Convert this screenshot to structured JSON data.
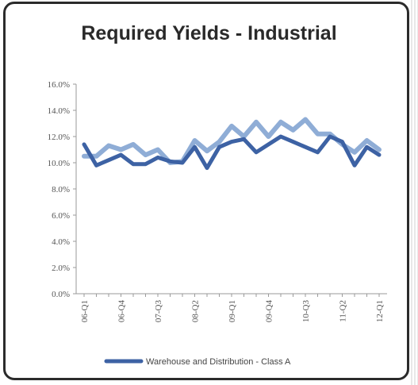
{
  "chart_data": {
    "type": "line",
    "title": "Required Yields - Industrial",
    "xlabel": "",
    "ylabel": "",
    "ylim": [
      0,
      16
    ],
    "yticks": [
      "0.0%",
      "2.0%",
      "4.0%",
      "6.0%",
      "8.0%",
      "10.0%",
      "12.0%",
      "14.0%",
      "16.0%"
    ],
    "x_tick_labels": [
      "06-Q1",
      "06-Q4",
      "07-Q3",
      "08-Q2",
      "09-Q1",
      "09-Q4",
      "10-Q3",
      "11-Q2",
      "12-Q1"
    ],
    "x_tick_index": [
      0,
      3,
      6,
      9,
      12,
      15,
      18,
      21,
      24
    ],
    "legend_position": "bottom",
    "grid": false,
    "series": [
      {
        "name": "",
        "color": "#8fadd6",
        "values": [
          10.5,
          10.5,
          11.3,
          11.0,
          11.4,
          10.6,
          11.0,
          10.0,
          10.1,
          11.7,
          10.9,
          11.6,
          12.8,
          12.0,
          13.1,
          12.0,
          13.1,
          12.5,
          13.3,
          12.2,
          12.2,
          11.4,
          10.8,
          11.7,
          11.0
        ]
      },
      {
        "name": "Warehouse and Distribution - Class A",
        "color": "#3d62a4",
        "values": [
          11.4,
          9.8,
          10.2,
          10.6,
          9.9,
          9.9,
          10.4,
          10.1,
          10.0,
          11.2,
          9.6,
          11.2,
          11.6,
          11.8,
          10.8,
          11.4,
          12.0,
          11.6,
          11.2,
          10.8,
          12.0,
          11.6,
          9.8,
          11.2,
          10.6
        ]
      }
    ]
  }
}
